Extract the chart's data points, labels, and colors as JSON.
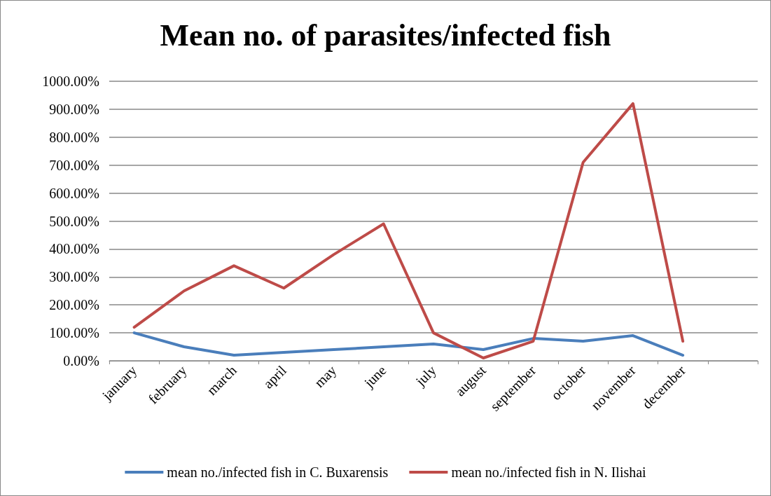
{
  "chart_data": {
    "type": "line",
    "title": "Mean no. of parasites/infected fish",
    "categories": [
      "january",
      "february",
      "march",
      "april",
      "may",
      "june",
      "july",
      "august",
      "september",
      "october",
      "november",
      "december",
      null
    ],
    "series": [
      {
        "name": "mean no./infected fish in C. Buxarensis",
        "color": "#4a7ebb",
        "values": [
          100,
          50,
          20,
          30,
          40,
          50,
          60,
          40,
          80,
          70,
          90,
          20,
          null
        ]
      },
      {
        "name": "mean no./infected fish in N. Ilishai",
        "color": "#be4b48",
        "values": [
          120,
          250,
          340,
          260,
          380,
          490,
          100,
          10,
          70,
          710,
          920,
          70,
          null
        ]
      }
    ],
    "ylim": [
      0,
      1000
    ],
    "yticks": [
      {
        "value": 0,
        "label": "0.00%"
      },
      {
        "value": 100,
        "label": "100.00%"
      },
      {
        "value": 200,
        "label": "200.00%"
      },
      {
        "value": 300,
        "label": "300.00%"
      },
      {
        "value": 400,
        "label": "400.00%"
      },
      {
        "value": 500,
        "label": "500.00%"
      },
      {
        "value": 600,
        "label": "600.00%"
      },
      {
        "value": 700,
        "label": "700.00%"
      },
      {
        "value": 800,
        "label": "800.00%"
      },
      {
        "value": 900,
        "label": "900.00%"
      },
      {
        "value": 1000,
        "label": "1000.00%"
      }
    ],
    "grid": "y",
    "legend": "bottom",
    "marker": "none",
    "line_style": "solid"
  }
}
